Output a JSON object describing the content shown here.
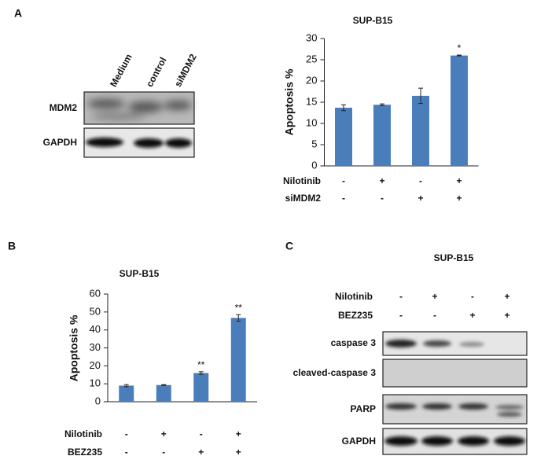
{
  "panels": [
    "A",
    "B",
    "C"
  ],
  "blot_a": {
    "lanes": [
      "Medium",
      "control",
      "siMDM2"
    ],
    "rows": [
      "MDM2",
      "GAPDH"
    ]
  },
  "blot_c": {
    "title": "SUP-B15",
    "treatments": [
      {
        "label": "Nilotinib",
        "signs": [
          "-",
          "+",
          "-",
          "+"
        ]
      },
      {
        "label": "BEZ235",
        "signs": [
          "-",
          "-",
          "+",
          "+"
        ]
      }
    ],
    "rows": [
      "caspase 3",
      "cleaved-caspase 3",
      "PARP",
      "GAPDH"
    ]
  },
  "chart_data": [
    {
      "type": "bar",
      "title": "SUP-B15",
      "y_label": "Apoptosis %",
      "treatments": [
        {
          "label": "Nilotinib",
          "signs": [
            "-",
            "+",
            "-",
            "+"
          ]
        },
        {
          "label": "siMDM2",
          "signs": [
            "-",
            "-",
            "+",
            "+"
          ]
        }
      ],
      "values": [
        13.7,
        14.4,
        16.5,
        26
      ],
      "errors": [
        0.7,
        0.2,
        1.8,
        0.1
      ],
      "annotations": [
        null,
        null,
        null,
        "*"
      ],
      "color": "#4a7ebb",
      "ylim": [
        0,
        30
      ],
      "yticks": [
        0,
        5,
        10,
        15,
        20,
        25,
        30
      ]
    },
    {
      "type": "bar",
      "title": "SUP-B15",
      "y_label": "Apoptosis %",
      "treatments": [
        {
          "label": "Nilotinib",
          "signs": [
            "-",
            "+",
            "-",
            "+"
          ]
        },
        {
          "label": "BEZ235",
          "signs": [
            "-",
            "-",
            "+",
            "+"
          ]
        }
      ],
      "values": [
        9,
        9.3,
        16,
        46.7
      ],
      "errors": [
        0.6,
        0.2,
        0.7,
        1.8
      ],
      "annotations": [
        null,
        null,
        "**",
        "**"
      ],
      "color": "#4a7ebb",
      "ylim": [
        0,
        60
      ],
      "yticks": [
        0,
        10,
        20,
        30,
        40,
        50,
        60
      ]
    }
  ]
}
